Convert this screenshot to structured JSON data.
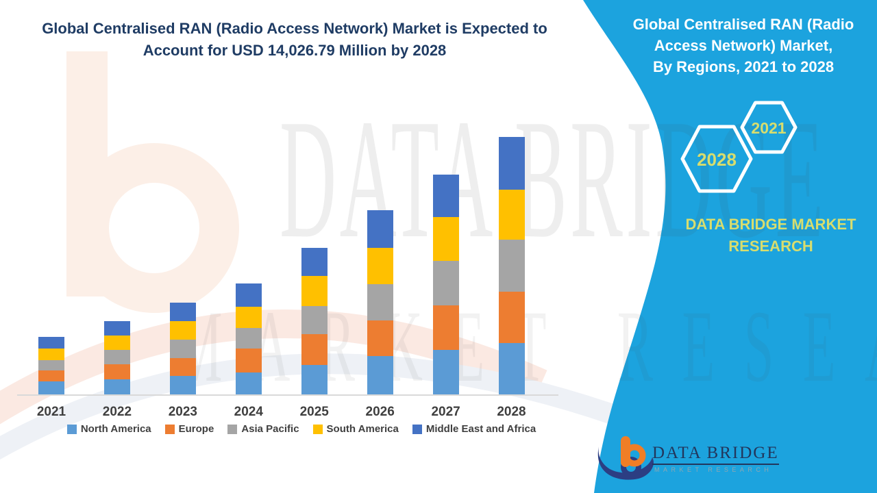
{
  "theme": {
    "panel_color": "#1CA3DE",
    "accent_text_color": "#D8DD6E",
    "title_color": "#1F3C64",
    "axis_text_color": "#3F3F3F",
    "watermark_peach": "#FCEFE7"
  },
  "main_title": {
    "line1": "Global Centralised RAN (Radio Access Network) Market is Expected to",
    "line2": "Account for USD 14,026.79 Million by 2028"
  },
  "side_panel": {
    "title_line1": "Global Centralised RAN (Radio",
    "title_line2": "Access Network) Market,",
    "title_line3": "By Regions, 2021 to 2028",
    "hexagons": [
      {
        "label": "2028"
      },
      {
        "label": "2021"
      }
    ],
    "brand_line1": "DATA BRIDGE MARKET",
    "brand_line2": "RESEARCH"
  },
  "logo": {
    "name": "DATA BRIDGE",
    "tagline": "MARKET RESEARCH"
  },
  "watermark": {
    "line1": "DATA BRIDGE",
    "line2": "MARKET RESEARCH"
  },
  "chart_data": {
    "type": "bar",
    "stacked": true,
    "title": "Global Centralised RAN (Radio Access Network) Market is Expected to Account for USD 14,026.79 Million by 2028",
    "value_unit": "USD Million",
    "highlight_value_2028_total": 14026.79,
    "categories": [
      "2021",
      "2022",
      "2023",
      "2024",
      "2025",
      "2026",
      "2027",
      "2028"
    ],
    "series": [
      {
        "name": "North America",
        "color": "#5B9BD5",
        "values": [
          710,
          810,
          1000,
          1205,
          1615,
          2080,
          2425,
          2800
        ]
      },
      {
        "name": "Europe",
        "color": "#ED7D31",
        "values": [
          600,
          840,
          995,
          1305,
          1680,
          1960,
          2425,
          2800
        ]
      },
      {
        "name": "Asia Pacific",
        "color": "#A5A5A5",
        "values": [
          560,
          775,
          1000,
          1120,
          1530,
          1955,
          2425,
          2840
        ]
      },
      {
        "name": "South America",
        "color": "#FFC000",
        "values": [
          650,
          770,
          1000,
          1155,
          1640,
          2000,
          2400,
          2730
        ]
      },
      {
        "name": "Middle East and Africa",
        "color": "#4472C4",
        "values": [
          600,
          785,
          1020,
          1245,
          1520,
          2050,
          2290,
          2856.79
        ]
      }
    ],
    "totals": [
      3120,
      3980,
      5015,
      6030,
      7985,
      10045,
      11965,
      14026.79
    ],
    "xlabel": "",
    "ylabel": "",
    "grid": false,
    "y_axis_visible": false,
    "legend_position": "bottom"
  }
}
